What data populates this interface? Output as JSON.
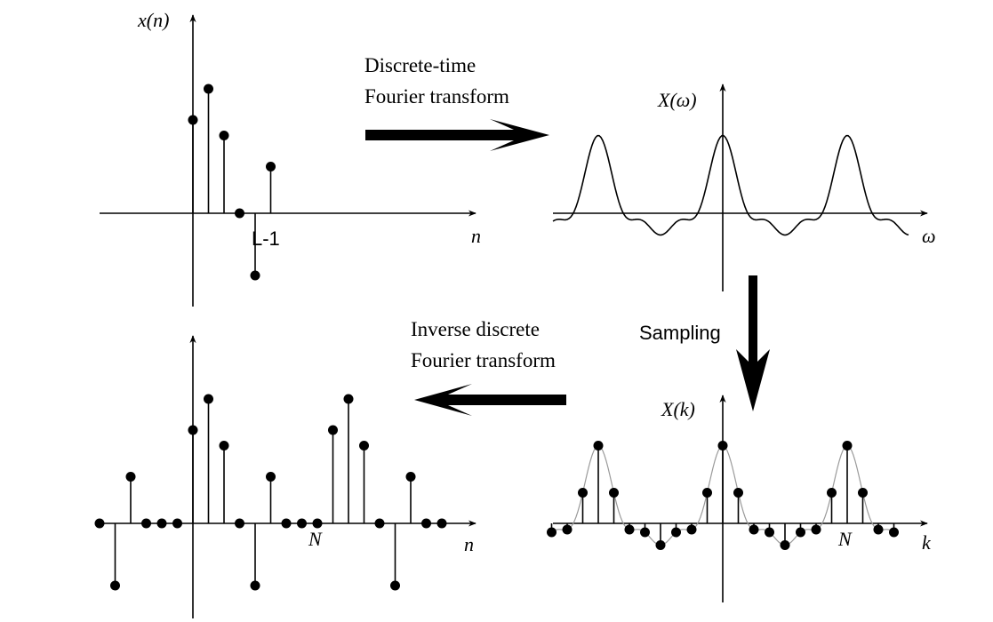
{
  "panels": {
    "time_signal": {
      "y_label": "x(n)",
      "x_label": "n",
      "tick_label": "L-1"
    },
    "dtft": {
      "y_label": "X(ω)",
      "x_label": "ω"
    },
    "dft": {
      "y_label": "X(k)",
      "x_label": "k",
      "tick_label": "N"
    },
    "periodic": {
      "x_label": "n",
      "tick_label": "N"
    }
  },
  "operations": {
    "dtft_line1": "Discrete-time",
    "dtft_line2": "Fourier transform",
    "sampling": "Sampling",
    "idft_line1": "Inverse discrete",
    "idft_line2": "Fourier transform"
  },
  "chart_data": {
    "type": "diagram",
    "x_n_values": [
      3,
      4,
      2.5,
      0,
      -2,
      1.5
    ],
    "x_n_note": "six samples n=0..5 (values relative; last is index L-1)",
    "periodic_repeats": 3,
    "periodic_zero_padding": 3,
    "dft_samples_per_period": 8,
    "dtft_periods_shown": 3
  }
}
